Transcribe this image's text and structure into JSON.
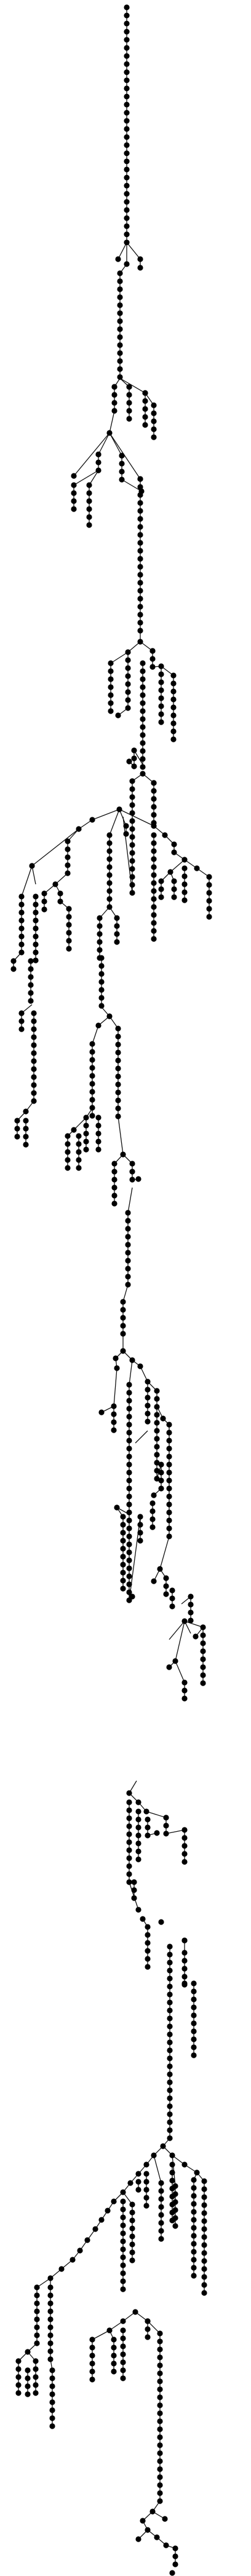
{
  "diagram": {
    "type": "tree",
    "orientation": "top-down",
    "node_shape": "filled-circle",
    "node_color": "#000000",
    "edge_color": "#111111",
    "background": "#ffffff",
    "labels": []
  }
}
